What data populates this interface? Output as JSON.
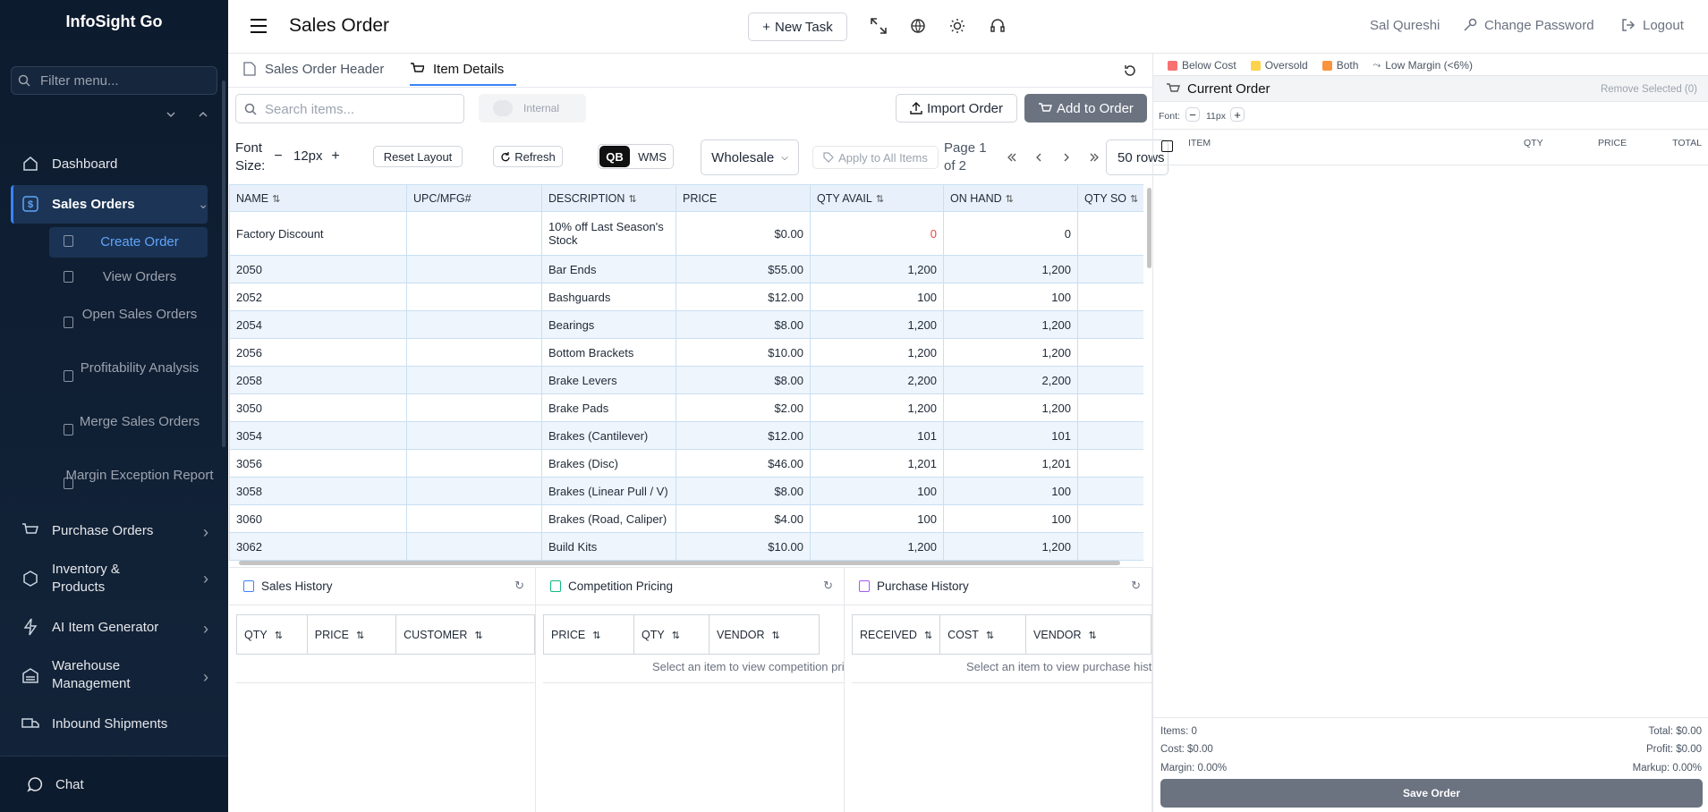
{
  "sidebar": {
    "brand": "InfoSight Go",
    "filter_placeholder": "Filter menu...",
    "menu": {
      "dashboard": "Dashboard",
      "sales_orders": "Sales Orders",
      "sales_children": [
        "Create Order",
        "View Orders",
        "Open Sales Orders",
        "Profitability Analysis",
        "Merge Sales Orders",
        "Margin Exception Report"
      ],
      "purchase_orders": "Purchase Orders",
      "inventory": "Inventory & Products",
      "ai_item": "AI Item Generator",
      "warehouse": "Warehouse Management",
      "inbound": "Inbound Shipments"
    },
    "chat": "Chat"
  },
  "header": {
    "title": "Sales Order",
    "new_task": "New Task",
    "user": "Sal Qureshi",
    "change_password": "Change Password",
    "logout": "Logout"
  },
  "tabs": [
    "Sales Order Header",
    "Item Details"
  ],
  "toolbar": {
    "search_placeholder": "Search items...",
    "internal": "Internal",
    "import": "Import Order",
    "add": "Add to Order",
    "font_size_label": "Font Size:",
    "font_size": "12px",
    "reset": "Reset Layout",
    "refresh": "Refresh",
    "qb": "QB",
    "wms": "WMS",
    "price_level": "Wholesale",
    "apply_all": "Apply to All Items",
    "page": "Page 1 of 2",
    "rows": "50 rows"
  },
  "items_table": {
    "columns": [
      "NAME",
      "UPC/MFG#",
      "DESCRIPTION",
      "PRICE",
      "QTY AVAIL",
      "ON HAND",
      "QTY SO"
    ],
    "rows": [
      [
        "Factory Discount",
        null,
        "10% off Last Season's Stock",
        "$0.00",
        "0",
        "0",
        null
      ],
      [
        "2050",
        null,
        "Bar Ends",
        "$55.00",
        "1,200",
        "1,200",
        null
      ],
      [
        "2052",
        null,
        "Bashguards",
        "$12.00",
        "100",
        "100",
        null
      ],
      [
        "2054",
        null,
        "Bearings",
        "$8.00",
        "1,200",
        "1,200",
        null
      ],
      [
        "2056",
        null,
        "Bottom Brackets",
        "$10.00",
        "1,200",
        "1,200",
        null
      ],
      [
        "2058",
        null,
        "Brake Levers",
        "$8.00",
        "2,200",
        "2,200",
        null
      ],
      [
        "3050",
        null,
        "Brake Pads",
        "$2.00",
        "1,200",
        "1,200",
        null
      ],
      [
        "3054",
        null,
        "Brakes (Cantilever)",
        "$12.00",
        "101",
        "101",
        null
      ],
      [
        "3056",
        null,
        "Brakes (Disc)",
        "$46.00",
        "1,201",
        "1,201",
        null
      ],
      [
        "3058",
        null,
        "Brakes (Linear Pull / V)",
        "$8.00",
        "100",
        "100",
        null
      ],
      [
        "3060",
        null,
        "Brakes (Road, Caliper)",
        "$4.00",
        "100",
        "100",
        null
      ],
      [
        "3062",
        null,
        "Build Kits",
        "$10.00",
        "1,200",
        "1,200",
        null
      ]
    ]
  },
  "panels": [
    {
      "title": "Sales History",
      "columns": [
        "QTY",
        "PRICE",
        "CUSTOMER"
      ]
    },
    {
      "title": "Competition Pricing",
      "columns": [
        "PRICE",
        "QTY",
        "VENDOR"
      ],
      "message": "Select an item to view competition pricing"
    },
    {
      "title": "Purchase History",
      "columns": [
        "RECEIVED",
        "COST",
        "VENDOR"
      ],
      "message": "Select an item to view purchase history"
    }
  ],
  "order": {
    "legend": [
      {
        "label": "Below Cost",
        "color": "#f87171"
      },
      {
        "label": "Oversold",
        "color": "#fcd34d"
      },
      {
        "label": "Both",
        "color": "#fb923c"
      },
      {
        "label": "Low Margin (<6%)"
      }
    ],
    "title": "Current Order",
    "remove": "Remove Selected (0)",
    "font_label": "Font:",
    "font_size": "11px",
    "columns": [
      "ITEM",
      "QTY",
      "PRICE",
      "TOTAL"
    ],
    "summary": {
      "items": "Items: 0",
      "total": "Total: $0.00",
      "cost": "Cost: $0.00",
      "profit": "Profit: $0.00",
      "margin": "Margin: 0.00%",
      "markup": "Markup: 0.00%"
    },
    "save": "Save Order"
  }
}
